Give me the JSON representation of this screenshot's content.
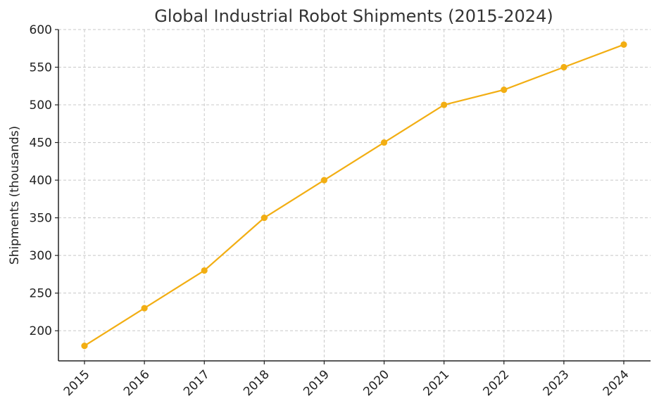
{
  "chart_data": {
    "type": "line",
    "title": "Global Industrial Robot Shipments (2015-2024)",
    "xlabel": "",
    "ylabel": "Shipments (thousands)",
    "categories": [
      "2015",
      "2016",
      "2017",
      "2018",
      "2019",
      "2020",
      "2021",
      "2022",
      "2023",
      "2024"
    ],
    "series": [
      {
        "values": [
          180,
          230,
          280,
          350,
          400,
          450,
          500,
          520,
          550,
          580
        ],
        "color": "#F2AE13"
      }
    ],
    "yticks": [
      200,
      250,
      300,
      350,
      400,
      450,
      500,
      550,
      600
    ],
    "ylim": [
      160,
      600
    ],
    "grid": true,
    "x_tick_rotation_deg": -45,
    "marker": "circle"
  }
}
